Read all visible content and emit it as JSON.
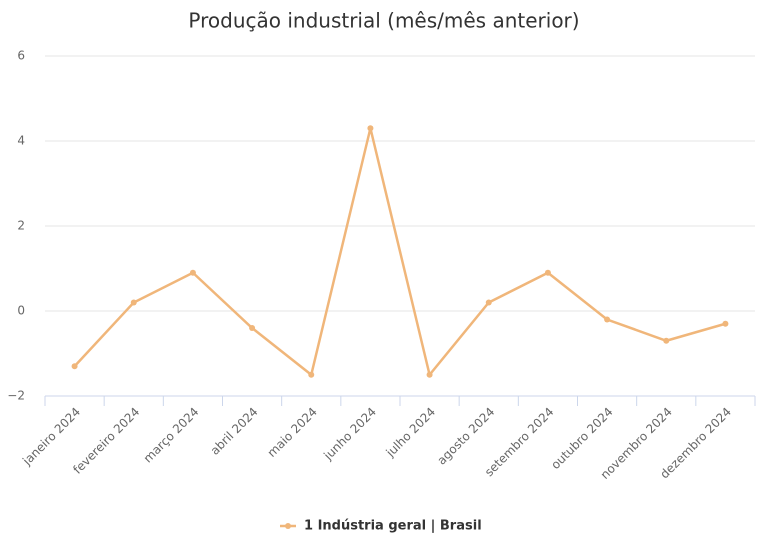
{
  "chart_data": {
    "type": "line",
    "title": "Produção industrial (mês/mês anterior)",
    "categories": [
      "janeiro 2024",
      "fevereiro 2024",
      "março 2024",
      "abril 2024",
      "maio 2024",
      "junho 2024",
      "julho 2024",
      "agosto 2024",
      "setembro 2024",
      "outubro 2024",
      "novembro 2024",
      "dezembro 2024"
    ],
    "series": [
      {
        "name": "1 Indústria geral | Brasil",
        "color": "#f0b67a",
        "values": [
          -1.3,
          0.2,
          0.9,
          -0.4,
          -1.5,
          4.3,
          -1.5,
          0.2,
          0.9,
          -0.2,
          -0.7,
          -0.3
        ]
      }
    ],
    "ylim": [
      -2,
      6
    ],
    "yticks": [
      {
        "value": -2,
        "label": "−2"
      },
      0,
      2,
      4,
      6
    ],
    "grid": true
  }
}
